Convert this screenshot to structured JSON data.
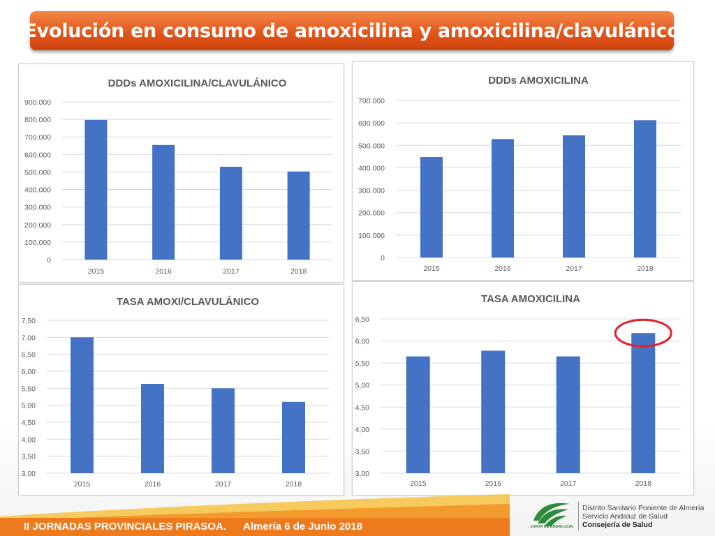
{
  "slide": {
    "title": "Evolución en consumo de amoxicilina y amoxicilina/clavulánico"
  },
  "footer": {
    "event": "II JORNADAS PROVINCIALES PIRASOA.",
    "place_date": "Almería 6 de Junio 2018"
  },
  "logo": {
    "caption": "JUNTA DE ANDALUCIA",
    "line1": "Distrito Sanitario Poniente de Almería",
    "line2": "Servicio Andaluz de Salud",
    "line3": "Consejería de Salud"
  },
  "colors": {
    "bar": "#4472c4",
    "banner": "#e2561a",
    "highlight": "#e3202b",
    "footer": "#ee7a1e"
  },
  "chart_data": [
    {
      "id": "ddd-amoxi-clav",
      "type": "bar",
      "title": "DDDs AMOXICILINA/CLAVULÁNICO",
      "categories": [
        "2015",
        "2016",
        "2017",
        "2018"
      ],
      "values": [
        797000,
        654000,
        530000,
        503000
      ],
      "yticks": [
        "0",
        "100.000",
        "200.000",
        "300.000",
        "400.000",
        "500.000",
        "600.000",
        "700.000",
        "800.000",
        "900.000"
      ],
      "ylim": [
        0,
        900000
      ],
      "grid": true,
      "legend": "none"
    },
    {
      "id": "ddd-amoxi",
      "type": "bar",
      "title": "DDDs AMOXICILINA",
      "categories": [
        "2015",
        "2016",
        "2017",
        "2018"
      ],
      "values": [
        448000,
        528000,
        545000,
        612000
      ],
      "yticks": [
        "0",
        "100.000",
        "200.000",
        "300.000",
        "400.000",
        "500.000",
        "600.000",
        "700.000"
      ],
      "ylim": [
        0,
        700000
      ],
      "grid": true,
      "legend": "none"
    },
    {
      "id": "tasa-amoxi-clav",
      "type": "bar",
      "title": "TASA AMOXI/CLAVULÁNICO",
      "categories": [
        "2015",
        "2016",
        "2017",
        "2018"
      ],
      "values": [
        7.0,
        5.63,
        5.5,
        5.1
      ],
      "yticks": [
        "3,00",
        "3,50",
        "4,00",
        "4,50",
        "5,00",
        "5,50",
        "6,00",
        "6,50",
        "7,00",
        "7,50"
      ],
      "ylim": [
        3.0,
        7.5
      ],
      "grid": true,
      "legend": "none"
    },
    {
      "id": "tasa-amoxi",
      "type": "bar",
      "title": "TASA AMOXICILINA",
      "categories": [
        "2015",
        "2016",
        "2017",
        "2018"
      ],
      "values": [
        5.65,
        5.78,
        5.65,
        6.18
      ],
      "yticks": [
        "3,00",
        "3,50",
        "4,00",
        "4,50",
        "5,00",
        "5,50",
        "6,00",
        "6,50"
      ],
      "ylim": [
        3.0,
        6.5
      ],
      "grid": true,
      "legend": "none",
      "highlight_category": "2018"
    }
  ]
}
